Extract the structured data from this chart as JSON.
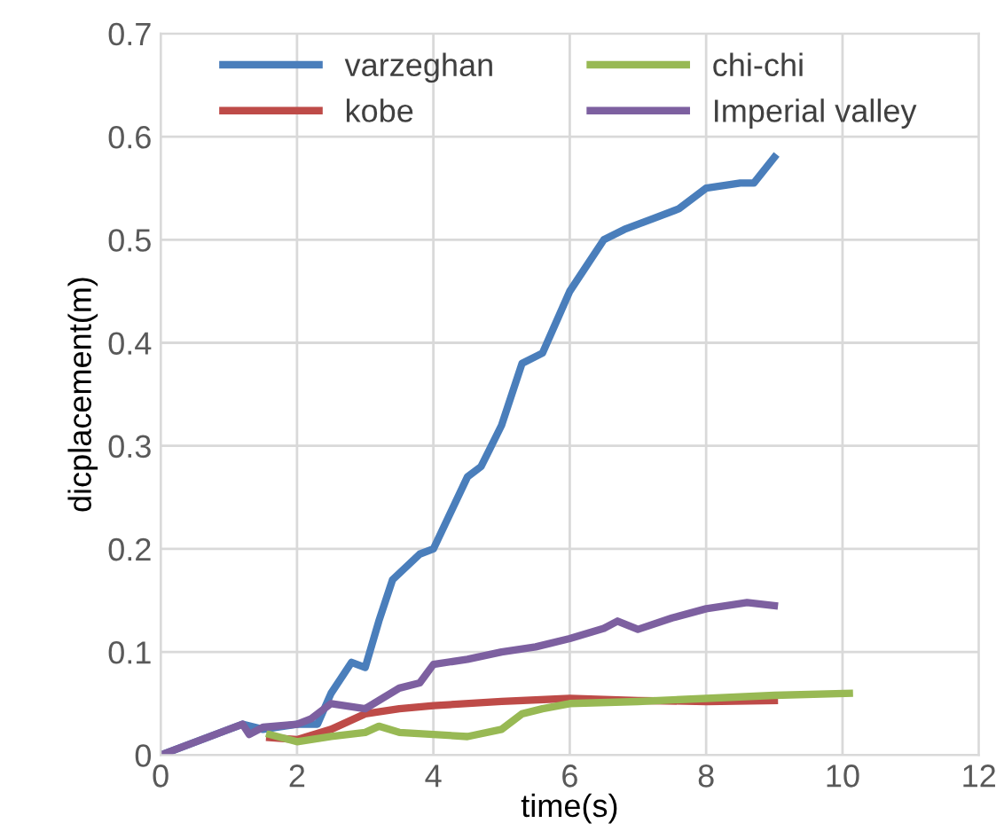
{
  "chart_data": {
    "type": "line",
    "xlabel": "time(s)",
    "ylabel": "dicplacement(m)",
    "xlim": [
      0,
      12
    ],
    "ylim": [
      0,
      0.7
    ],
    "xticks": [
      0,
      2,
      4,
      6,
      8,
      10,
      12
    ],
    "yticks": [
      0,
      0.1,
      0.2,
      0.3,
      0.4,
      0.5,
      0.6,
      0.7
    ],
    "grid": true,
    "legend": "top",
    "line_style": "solid",
    "marker": "none",
    "series": [
      {
        "name": "varzeghan",
        "color": "#4a7ebb",
        "x": [
          0,
          1.2,
          1.5,
          2.0,
          2.3,
          2.5,
          2.8,
          3.0,
          3.2,
          3.4,
          3.8,
          4.0,
          4.5,
          4.7,
          5.0,
          5.3,
          5.6,
          5.8,
          6.0,
          6.2,
          6.5,
          6.8,
          7.2,
          7.6,
          8.0,
          8.5,
          8.7,
          9.0
        ],
        "values": [
          0,
          0.03,
          0.025,
          0.03,
          0.03,
          0.06,
          0.09,
          0.085,
          0.13,
          0.17,
          0.195,
          0.2,
          0.27,
          0.28,
          0.32,
          0.38,
          0.39,
          0.42,
          0.45,
          0.47,
          0.5,
          0.51,
          0.52,
          0.53,
          0.55,
          0.555,
          0.555,
          0.58
        ]
      },
      {
        "name": "kobe",
        "color": "#be4b48",
        "x": [
          1.6,
          2.0,
          2.5,
          3.0,
          3.5,
          4.0,
          5.0,
          6.0,
          7.0,
          8.0,
          9.0
        ],
        "values": [
          0.017,
          0.015,
          0.025,
          0.04,
          0.045,
          0.048,
          0.052,
          0.055,
          0.053,
          0.052,
          0.053
        ]
      },
      {
        "name": "chi-chi",
        "color": "#98b954",
        "x": [
          1.6,
          2.0,
          2.5,
          3.0,
          3.2,
          3.5,
          4.0,
          4.5,
          5.0,
          5.3,
          5.6,
          6.0,
          7.0,
          8.0,
          9.0,
          10.1
        ],
        "values": [
          0.02,
          0.013,
          0.018,
          0.022,
          0.028,
          0.022,
          0.02,
          0.018,
          0.025,
          0.04,
          0.045,
          0.05,
          0.052,
          0.055,
          0.058,
          0.06
        ]
      },
      {
        "name": "Imperial valley",
        "color": "#7d60a0",
        "x": [
          0,
          1.2,
          1.3,
          1.5,
          2.0,
          2.2,
          2.5,
          3.0,
          3.5,
          3.8,
          4.0,
          4.5,
          5.0,
          5.5,
          6.0,
          6.5,
          6.7,
          7.0,
          7.5,
          8.0,
          8.6,
          9.0
        ],
        "values": [
          0,
          0.03,
          0.02,
          0.027,
          0.03,
          0.035,
          0.05,
          0.045,
          0.065,
          0.07,
          0.088,
          0.093,
          0.1,
          0.105,
          0.113,
          0.123,
          0.13,
          0.122,
          0.133,
          0.142,
          0.148,
          0.145
        ]
      }
    ]
  }
}
